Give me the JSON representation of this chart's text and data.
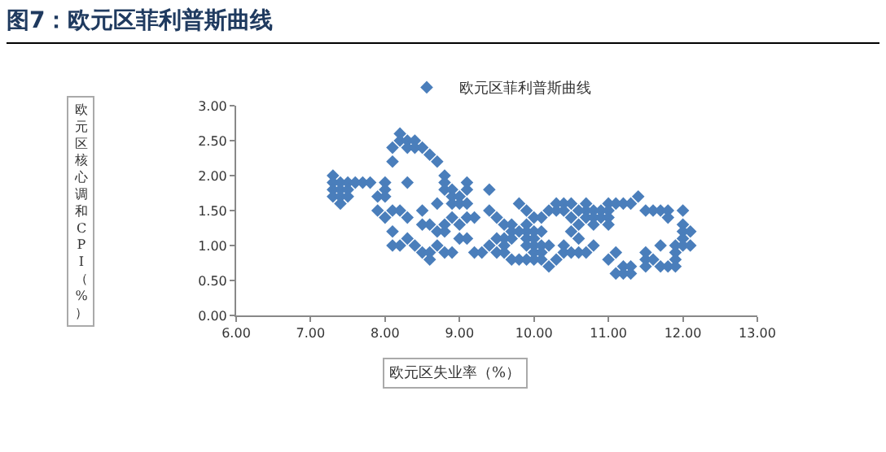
{
  "chart_data": {
    "type": "scatter",
    "title": "图7：欧元区菲利普斯曲线",
    "xlabel": "欧元区失业率（%）",
    "ylabel": "欧元区核心调和CPI（%）",
    "legend": "top",
    "marker": "diamond",
    "grid": false,
    "xlim": [
      6,
      13
    ],
    "ylim": [
      0,
      3
    ],
    "xticks": [
      {
        "value": 6,
        "label": "6.00"
      },
      {
        "value": 7,
        "label": "7.00"
      },
      {
        "value": 8,
        "label": "8.00"
      },
      {
        "value": 9,
        "label": "9.00"
      },
      {
        "value": 10,
        "label": "10.00"
      },
      {
        "value": 11,
        "label": "11.00"
      },
      {
        "value": 12,
        "label": "12.00"
      },
      {
        "value": 13,
        "label": "13.00"
      }
    ],
    "yticks": [
      {
        "value": 0,
        "label": "0.00"
      },
      {
        "value": 0.5,
        "label": "0.50"
      },
      {
        "value": 1,
        "label": "1.00"
      },
      {
        "value": 1.5,
        "label": "1.50"
      },
      {
        "value": 2,
        "label": "2.00"
      },
      {
        "value": 2.5,
        "label": "2.50"
      },
      {
        "value": 3,
        "label": "3.00"
      }
    ],
    "series": [
      {
        "name": "欧元区菲利普斯曲线",
        "color": "#4a7ebb",
        "x": [
          7.3,
          7.3,
          7.3,
          7.3,
          7.4,
          7.4,
          7.4,
          7.4,
          7.5,
          7.5,
          7.5,
          7.6,
          7.7,
          7.8,
          7.9,
          7.9,
          8.0,
          8.0,
          8.0,
          8.0,
          8.1,
          8.1,
          8.1,
          8.1,
          8.1,
          8.2,
          8.2,
          8.2,
          8.2,
          8.3,
          8.3,
          8.3,
          8.3,
          8.3,
          8.4,
          8.4,
          8.4,
          8.5,
          8.5,
          8.5,
          8.5,
          8.6,
          8.6,
          8.6,
          8.6,
          8.7,
          8.7,
          8.7,
          8.7,
          8.8,
          8.8,
          8.8,
          8.8,
          8.8,
          8.8,
          8.9,
          8.9,
          8.9,
          8.9,
          8.9,
          9.0,
          9.0,
          9.0,
          9.0,
          9.1,
          9.1,
          9.1,
          9.1,
          9.1,
          9.2,
          9.2,
          9.3,
          9.4,
          9.4,
          9.4,
          9.5,
          9.5,
          9.5,
          9.6,
          9.6,
          9.6,
          9.6,
          9.7,
          9.7,
          9.7,
          9.7,
          9.8,
          9.8,
          9.8,
          9.9,
          9.9,
          9.9,
          9.9,
          9.9,
          9.9,
          10.0,
          10.0,
          10.0,
          10.0,
          10.0,
          10.0,
          10.1,
          10.1,
          10.1,
          10.1,
          10.1,
          10.2,
          10.2,
          10.2,
          10.3,
          10.3,
          10.3,
          10.4,
          10.4,
          10.4,
          10.4,
          10.5,
          10.5,
          10.5,
          10.5,
          10.6,
          10.6,
          10.6,
          10.6,
          10.7,
          10.7,
          10.7,
          10.7,
          10.8,
          10.8,
          10.8,
          10.8,
          10.9,
          10.9,
          11.0,
          11.0,
          11.0,
          11.0,
          11.0,
          11.1,
          11.1,
          11.1,
          11.2,
          11.2,
          11.2,
          11.3,
          11.3,
          11.3,
          11.4,
          11.5,
          11.5,
          11.5,
          11.5,
          11.6,
          11.6,
          11.7,
          11.7,
          11.7,
          11.8,
          11.8,
          11.8,
          11.9,
          11.9,
          11.9,
          11.9,
          12.0,
          12.0,
          12.0,
          12.0,
          12.0,
          12.1,
          12.1
        ],
        "values": [
          2.0,
          1.9,
          1.8,
          1.7,
          1.9,
          1.8,
          1.7,
          1.6,
          1.9,
          1.8,
          1.7,
          1.9,
          1.9,
          1.9,
          1.7,
          1.5,
          1.9,
          1.8,
          1.7,
          1.4,
          2.4,
          2.2,
          1.5,
          1.2,
          1.0,
          2.6,
          2.5,
          1.5,
          1.0,
          2.5,
          2.4,
          1.9,
          1.4,
          1.1,
          2.5,
          2.4,
          1.0,
          2.4,
          1.5,
          1.3,
          0.9,
          2.3,
          1.3,
          0.9,
          0.8,
          2.2,
          1.6,
          1.2,
          1.0,
          2.0,
          1.9,
          1.8,
          1.3,
          1.2,
          0.9,
          1.8,
          1.7,
          1.6,
          1.4,
          0.9,
          1.7,
          1.6,
          1.3,
          1.1,
          1.9,
          1.8,
          1.6,
          1.4,
          1.1,
          1.4,
          0.9,
          0.9,
          1.8,
          1.5,
          1.0,
          1.4,
          1.1,
          0.9,
          1.3,
          1.1,
          1.0,
          0.9,
          1.3,
          1.2,
          1.1,
          0.8,
          1.6,
          1.2,
          0.8,
          1.5,
          1.3,
          1.2,
          1.1,
          1.0,
          0.8,
          1.4,
          1.2,
          1.1,
          1.0,
          0.9,
          0.8,
          1.4,
          1.2,
          1.0,
          0.9,
          0.8,
          1.5,
          1.0,
          0.7,
          1.6,
          1.5,
          0.8,
          1.6,
          1.5,
          1.0,
          0.9,
          1.6,
          1.4,
          1.2,
          0.9,
          1.5,
          1.3,
          1.1,
          0.9,
          1.6,
          1.5,
          1.4,
          0.9,
          1.5,
          1.4,
          1.3,
          1.0,
          1.5,
          1.4,
          1.6,
          1.5,
          1.4,
          1.3,
          0.8,
          1.6,
          0.9,
          0.6,
          1.6,
          0.7,
          0.6,
          1.6,
          0.7,
          0.6,
          1.7,
          1.5,
          0.9,
          0.8,
          0.7,
          1.5,
          0.8,
          1.5,
          1.0,
          0.7,
          1.5,
          1.4,
          0.7,
          0.9,
          0.8,
          0.7,
          1.0,
          1.5,
          1.3,
          1.2,
          1.1,
          1.0,
          1.2,
          1.0
        ]
      }
    ]
  }
}
